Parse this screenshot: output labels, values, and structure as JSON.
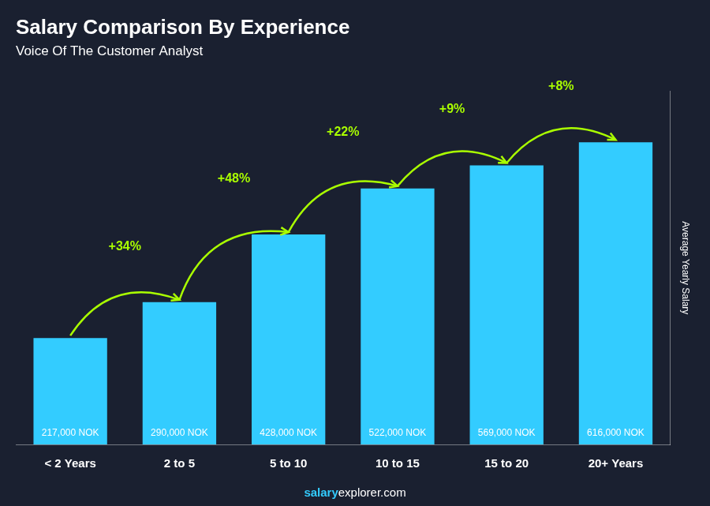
{
  "chart_data": {
    "type": "bar",
    "title": "Salary Comparison By Experience",
    "subtitle": "Voice Of The Customer Analyst",
    "categories": [
      "< 2 Years",
      "2 to 5",
      "5 to 10",
      "10 to 15",
      "15 to 20",
      "20+ Years"
    ],
    "values": [
      217000,
      290000,
      428000,
      522000,
      569000,
      616000
    ],
    "value_labels": [
      "217,000 NOK",
      "290,000 NOK",
      "428,000 NOK",
      "522,000 NOK",
      "569,000 NOK",
      "616,000 NOK"
    ],
    "data_labels": true,
    "color": "#33ccff",
    "ylim": [
      0,
      720000
    ],
    "ylabel": "Average Yearly Salary",
    "tick_labels": "x",
    "grid": false,
    "annotations": [
      {
        "text": "+34%",
        "color": "#aaff00"
      },
      {
        "text": "+48%",
        "color": "#aaff00"
      },
      {
        "text": "+22%",
        "color": "#aaff00"
      },
      {
        "text": "+9%",
        "color": "#aaff00"
      },
      {
        "text": "+8%",
        "color": "#aaff00"
      }
    ],
    "footer": [
      {
        "text": "salary",
        "color": "#33ccff"
      },
      {
        "text": "explorer.com",
        "color": "#ffffff"
      }
    ]
  }
}
